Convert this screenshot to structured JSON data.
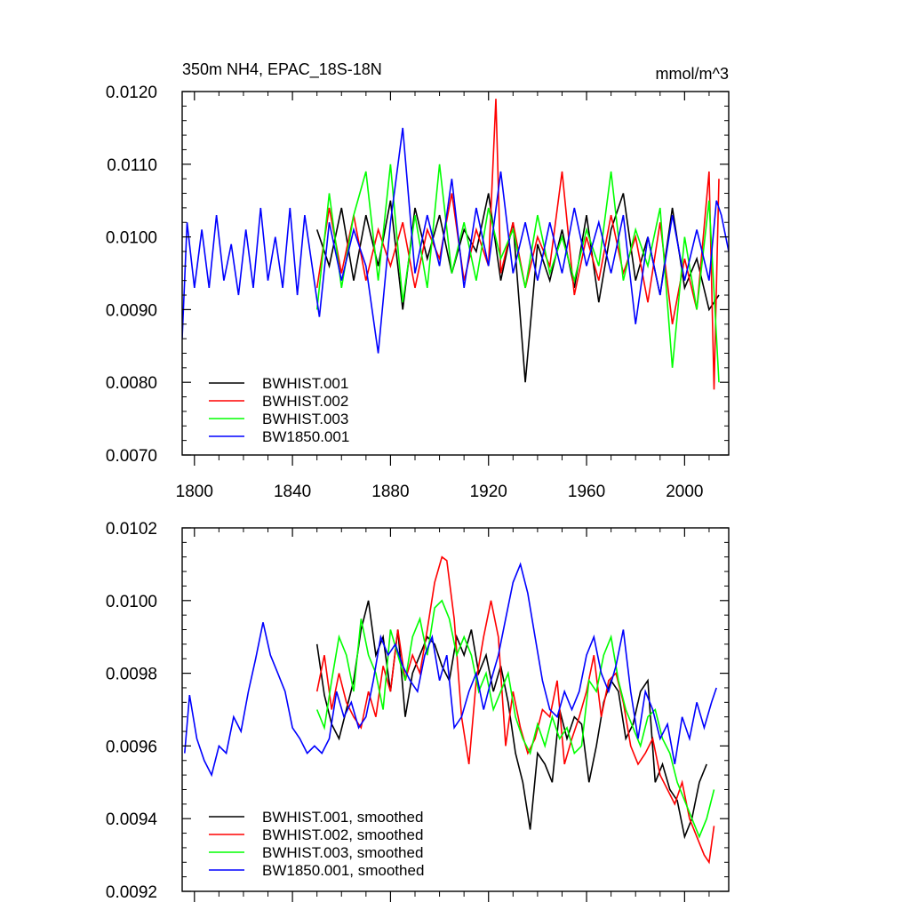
{
  "chart_data": [
    {
      "type": "line",
      "title": "350m NH4, EPAC_18S-18N",
      "units": "mmol/m^3",
      "xlabel": "",
      "ylabel": "",
      "xlim": [
        1795,
        2018
      ],
      "ylim": [
        0.007,
        0.012
      ],
      "xticks": [
        1800,
        1840,
        1880,
        1920,
        1960,
        2000
      ],
      "xtick_labels": [
        "1800",
        "1840",
        "1880",
        "1920",
        "1960",
        "2000"
      ],
      "yticks": [
        0.007,
        0.008,
        0.009,
        0.01,
        0.011,
        0.012
      ],
      "ytick_labels": [
        "0.0070",
        "0.0080",
        "0.0090",
        "0.0100",
        "0.0110",
        "0.0120"
      ],
      "legend_position": "bottom-left",
      "series": [
        {
          "name": "BWHIST.001",
          "color": "#000000",
          "x": [
            1850,
            1855,
            1860,
            1865,
            1870,
            1875,
            1880,
            1885,
            1890,
            1895,
            1900,
            1905,
            1910,
            1915,
            1920,
            1925,
            1930,
            1935,
            1940,
            1945,
            1950,
            1955,
            1960,
            1965,
            1970,
            1975,
            1980,
            1985,
            1990,
            1995,
            2000,
            2005,
            2010,
            2014
          ],
          "y": [
            0.0101,
            0.0096,
            0.0104,
            0.0094,
            0.0103,
            0.0096,
            0.0105,
            0.009,
            0.0104,
            0.0097,
            0.0103,
            0.0095,
            0.0101,
            0.0098,
            0.0106,
            0.0094,
            0.0102,
            0.008,
            0.0099,
            0.0094,
            0.0101,
            0.0093,
            0.0103,
            0.0091,
            0.0101,
            0.0106,
            0.0094,
            0.01,
            0.0092,
            0.0104,
            0.0093,
            0.0097,
            0.009,
            0.0092
          ]
        },
        {
          "name": "BWHIST.002",
          "color": "#ff0000",
          "x": [
            1850,
            1855,
            1860,
            1865,
            1870,
            1875,
            1880,
            1885,
            1890,
            1895,
            1900,
            1905,
            1910,
            1915,
            1920,
            1923,
            1925,
            1930,
            1935,
            1940,
            1945,
            1950,
            1955,
            1960,
            1965,
            1970,
            1975,
            1980,
            1985,
            1990,
            1995,
            2000,
            2005,
            2010,
            2012,
            2014
          ],
          "y": [
            0.0093,
            0.0104,
            0.0095,
            0.0103,
            0.0094,
            0.0101,
            0.0096,
            0.0102,
            0.0093,
            0.0101,
            0.0097,
            0.0106,
            0.0094,
            0.0101,
            0.0096,
            0.0119,
            0.0095,
            0.0102,
            0.0093,
            0.01,
            0.0096,
            0.0109,
            0.0092,
            0.01,
            0.0094,
            0.0103,
            0.0095,
            0.01,
            0.0091,
            0.0102,
            0.0088,
            0.0097,
            0.009,
            0.0109,
            0.0079,
            0.0108
          ]
        },
        {
          "name": "BWHIST.003",
          "color": "#00ff00",
          "x": [
            1850,
            1855,
            1860,
            1865,
            1870,
            1875,
            1880,
            1885,
            1890,
            1895,
            1900,
            1905,
            1910,
            1915,
            1920,
            1925,
            1930,
            1935,
            1940,
            1945,
            1950,
            1955,
            1960,
            1965,
            1970,
            1975,
            1980,
            1985,
            1990,
            1995,
            2000,
            2005,
            2010,
            2014
          ],
          "y": [
            0.009,
            0.0106,
            0.0093,
            0.0103,
            0.0109,
            0.0094,
            0.011,
            0.0091,
            0.0103,
            0.0093,
            0.011,
            0.0095,
            0.0102,
            0.0094,
            0.0104,
            0.0097,
            0.0101,
            0.0093,
            0.0103,
            0.0095,
            0.01,
            0.0094,
            0.0101,
            0.0096,
            0.0109,
            0.0094,
            0.0101,
            0.0096,
            0.0104,
            0.0082,
            0.01,
            0.009,
            0.0105,
            0.008
          ]
        },
        {
          "name": "BW1850.001",
          "color": "#0000ff",
          "x": [
            1795,
            1797,
            1800,
            1803,
            1806,
            1809,
            1812,
            1815,
            1818,
            1821,
            1824,
            1827,
            1830,
            1833,
            1836,
            1839,
            1842,
            1845,
            1848,
            1851,
            1855,
            1860,
            1865,
            1870,
            1875,
            1880,
            1885,
            1890,
            1895,
            1900,
            1905,
            1910,
            1915,
            1920,
            1925,
            1930,
            1935,
            1940,
            1945,
            1950,
            1955,
            1960,
            1965,
            1970,
            1975,
            1980,
            1985,
            1990,
            1995,
            2000,
            2005,
            2010,
            2013,
            2015,
            2018
          ],
          "y": [
            0.0086,
            0.0102,
            0.0093,
            0.0101,
            0.0093,
            0.0103,
            0.0094,
            0.0099,
            0.0092,
            0.0101,
            0.0093,
            0.0104,
            0.0094,
            0.01,
            0.0093,
            0.0104,
            0.0092,
            0.0103,
            0.0096,
            0.0089,
            0.0102,
            0.0094,
            0.0101,
            0.0096,
            0.0084,
            0.0102,
            0.0115,
            0.0095,
            0.0103,
            0.0096,
            0.0108,
            0.0093,
            0.0104,
            0.0096,
            0.0109,
            0.0095,
            0.0102,
            0.0094,
            0.0102,
            0.0095,
            0.0104,
            0.0096,
            0.0102,
            0.0095,
            0.0103,
            0.0088,
            0.01,
            0.0092,
            0.0103,
            0.0094,
            0.0101,
            0.0094,
            0.0105,
            0.0103,
            0.0098
          ]
        }
      ]
    },
    {
      "type": "line",
      "title": "",
      "xlabel": "",
      "ylabel": "",
      "xlim": [
        1795,
        2018
      ],
      "ylim": [
        0.0092,
        0.0102
      ],
      "xticks": [
        1800,
        1840,
        1880,
        1920,
        1960,
        2000
      ],
      "yticks": [
        0.0092,
        0.0094,
        0.0096,
        0.0098,
        0.01,
        0.0102
      ],
      "ytick_labels": [
        "0.0092",
        "0.0094",
        "0.0096",
        "0.0098",
        "0.0100",
        "0.0102"
      ],
      "legend_position": "bottom-left",
      "series": [
        {
          "name": "BWHIST.001, smoothed",
          "color": "#000000",
          "x": [
            1850,
            1853,
            1856,
            1859,
            1862,
            1865,
            1868,
            1871,
            1874,
            1877,
            1880,
            1883,
            1886,
            1889,
            1892,
            1895,
            1898,
            1901,
            1904,
            1907,
            1910,
            1913,
            1916,
            1919,
            1922,
            1925,
            1928,
            1931,
            1934,
            1937,
            1940,
            1943,
            1946,
            1949,
            1952,
            1955,
            1958,
            1961,
            1964,
            1967,
            1970,
            1973,
            1976,
            1979,
            1982,
            1985,
            1988,
            1991,
            1994,
            1997,
            2000,
            2003,
            2006,
            2009
          ],
          "y": [
            0.00988,
            0.00974,
            0.00966,
            0.00962,
            0.0097,
            0.00978,
            0.00992,
            0.01,
            0.00985,
            0.0099,
            0.00975,
            0.00992,
            0.00968,
            0.0098,
            0.00985,
            0.0099,
            0.00988,
            0.00982,
            0.00978,
            0.0099,
            0.00985,
            0.00992,
            0.0098,
            0.00985,
            0.00975,
            0.00982,
            0.00972,
            0.00958,
            0.0095,
            0.00937,
            0.00958,
            0.00955,
            0.0095,
            0.0097,
            0.00962,
            0.00968,
            0.00966,
            0.0095,
            0.0096,
            0.00972,
            0.00978,
            0.00975,
            0.00962,
            0.00966,
            0.00975,
            0.00978,
            0.0095,
            0.00955,
            0.00948,
            0.00945,
            0.00935,
            0.0094,
            0.0095,
            0.00955
          ]
        },
        {
          "name": "BWHIST.002, smoothed",
          "color": "#ff0000",
          "x": [
            1850,
            1853,
            1856,
            1859,
            1862,
            1865,
            1868,
            1871,
            1874,
            1877,
            1880,
            1883,
            1886,
            1889,
            1892,
            1895,
            1898,
            1901,
            1903,
            1906,
            1909,
            1912,
            1915,
            1918,
            1921,
            1924,
            1927,
            1930,
            1933,
            1936,
            1939,
            1942,
            1945,
            1948,
            1951,
            1954,
            1957,
            1960,
            1963,
            1966,
            1969,
            1972,
            1975,
            1978,
            1981,
            1984,
            1987,
            1990,
            1993,
            1996,
            1999,
            2002,
            2005,
            2008,
            2010,
            2012
          ],
          "y": [
            0.00975,
            0.00985,
            0.0097,
            0.0098,
            0.00972,
            0.00968,
            0.00965,
            0.00975,
            0.00968,
            0.00982,
            0.00975,
            0.00992,
            0.00978,
            0.00985,
            0.0098,
            0.00992,
            0.01005,
            0.01012,
            0.01011,
            0.00995,
            0.00968,
            0.00955,
            0.00978,
            0.0099,
            0.01,
            0.0099,
            0.0096,
            0.00975,
            0.00965,
            0.00958,
            0.00962,
            0.0097,
            0.00968,
            0.00978,
            0.00955,
            0.00962,
            0.00968,
            0.00975,
            0.00985,
            0.00968,
            0.00978,
            0.0098,
            0.00972,
            0.0096,
            0.00955,
            0.00958,
            0.00962,
            0.00952,
            0.00948,
            0.00944,
            0.0095,
            0.0094,
            0.00935,
            0.0093,
            0.00928,
            0.00938
          ]
        },
        {
          "name": "BWHIST.003, smoothed",
          "color": "#00ff00",
          "x": [
            1850,
            1853,
            1856,
            1859,
            1862,
            1865,
            1868,
            1871,
            1874,
            1877,
            1880,
            1883,
            1886,
            1889,
            1892,
            1895,
            1898,
            1901,
            1904,
            1907,
            1910,
            1913,
            1916,
            1919,
            1922,
            1925,
            1928,
            1931,
            1934,
            1937,
            1940,
            1943,
            1946,
            1949,
            1952,
            1955,
            1958,
            1961,
            1964,
            1967,
            1970,
            1973,
            1976,
            1979,
            1982,
            1985,
            1988,
            1991,
            1994,
            1997,
            2000,
            2003,
            2006,
            2009,
            2012
          ],
          "y": [
            0.0097,
            0.00965,
            0.00978,
            0.0099,
            0.00985,
            0.00975,
            0.00995,
            0.00985,
            0.0098,
            0.0097,
            0.00992,
            0.00985,
            0.00978,
            0.0099,
            0.00995,
            0.00985,
            0.00998,
            0.01,
            0.00995,
            0.00985,
            0.0099,
            0.00985,
            0.00975,
            0.0098,
            0.0097,
            0.00975,
            0.0098,
            0.00968,
            0.00962,
            0.00958,
            0.00966,
            0.0096,
            0.00968,
            0.00962,
            0.00965,
            0.00958,
            0.0096,
            0.00978,
            0.00975,
            0.00985,
            0.0099,
            0.00978,
            0.0097,
            0.00965,
            0.0096,
            0.00968,
            0.0097,
            0.00962,
            0.00958,
            0.0095,
            0.00945,
            0.0094,
            0.00935,
            0.0094,
            0.00948
          ]
        },
        {
          "name": "BW1850.001, smoothed",
          "color": "#0000ff",
          "x": [
            1796,
            1798,
            1801,
            1804,
            1807,
            1810,
            1813,
            1816,
            1819,
            1822,
            1825,
            1828,
            1831,
            1834,
            1837,
            1840,
            1843,
            1846,
            1849,
            1852,
            1855,
            1858,
            1861,
            1864,
            1867,
            1870,
            1873,
            1876,
            1879,
            1882,
            1885,
            1888,
            1891,
            1894,
            1897,
            1900,
            1903,
            1906,
            1909,
            1912,
            1915,
            1918,
            1921,
            1924,
            1927,
            1930,
            1933,
            1936,
            1939,
            1942,
            1945,
            1948,
            1951,
            1954,
            1957,
            1960,
            1963,
            1966,
            1969,
            1972,
            1975,
            1978,
            1981,
            1984,
            1987,
            1990,
            1993,
            1996,
            1999,
            2002,
            2005,
            2008,
            2011,
            2013
          ],
          "y": [
            0.00958,
            0.00974,
            0.00962,
            0.00956,
            0.00952,
            0.0096,
            0.00958,
            0.00968,
            0.00964,
            0.00975,
            0.00984,
            0.00994,
            0.00985,
            0.0098,
            0.00975,
            0.00965,
            0.00962,
            0.00958,
            0.0096,
            0.00958,
            0.00962,
            0.00975,
            0.00968,
            0.00972,
            0.00965,
            0.00968,
            0.00978,
            0.0099,
            0.00985,
            0.00988,
            0.00982,
            0.00978,
            0.00975,
            0.00985,
            0.0099,
            0.00978,
            0.00985,
            0.00965,
            0.00968,
            0.00975,
            0.0098,
            0.0097,
            0.00978,
            0.00985,
            0.00995,
            0.01005,
            0.0101,
            0.01002,
            0.0099,
            0.00978,
            0.0097,
            0.00968,
            0.00975,
            0.0097,
            0.00975,
            0.00985,
            0.0099,
            0.0098,
            0.00975,
            0.00982,
            0.00992,
            0.00975,
            0.00962,
            0.00975,
            0.0097,
            0.00962,
            0.00966,
            0.00955,
            0.00968,
            0.00962,
            0.00972,
            0.00965,
            0.00972,
            0.00976
          ]
        }
      ]
    }
  ]
}
